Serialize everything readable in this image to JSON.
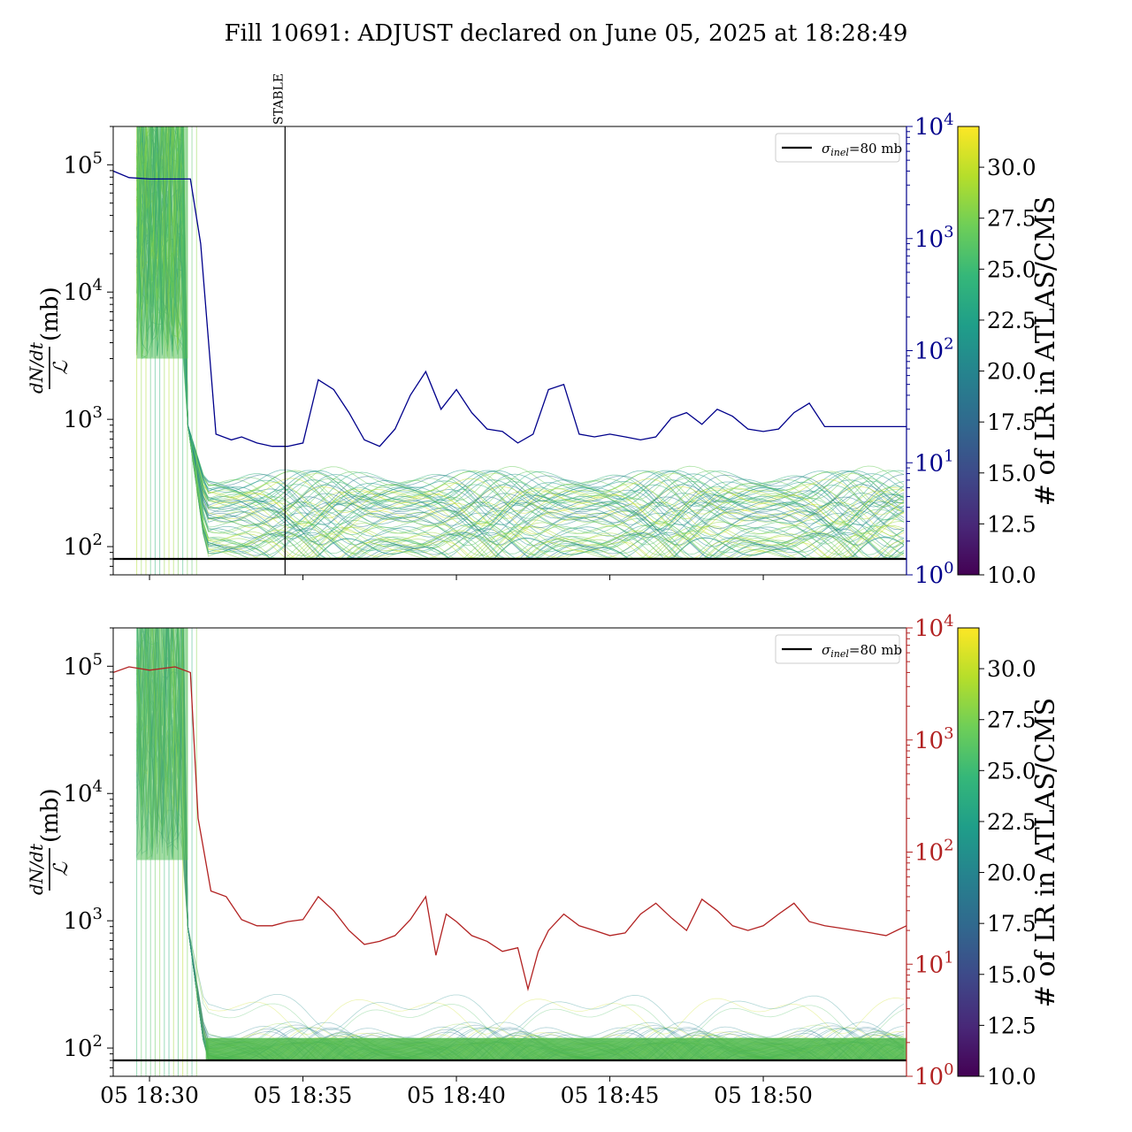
{
  "title": "Fill 10691: ADJUST declared on June 05, 2025 at 18:28:49",
  "colors": {
    "blue_trace": "#00008b",
    "red_trace": "#b22222",
    "threshold": "#000000",
    "viridis": [
      "#440154",
      "#482878",
      "#3e4989",
      "#31688e",
      "#26828e",
      "#1f9e89",
      "#35b779",
      "#6ece58",
      "#b5de2b",
      "#fde725"
    ]
  },
  "chart_data": [
    {
      "type": "line",
      "panel": "top",
      "ylabel_num": "dN/dt",
      "ylabel_den": "ℒ",
      "ylabel_unit": "(mb)",
      "y_scale": "log",
      "ylim": [
        60,
        200000
      ],
      "y_ticks": [
        {
          "base": "10",
          "exp": "2",
          "value": 100
        },
        {
          "base": "10",
          "exp": "3",
          "value": 1000
        },
        {
          "base": "10",
          "exp": "4",
          "value": 10000
        },
        {
          "base": "10",
          "exp": "5",
          "value": 100000
        }
      ],
      "y2_scale": "log",
      "y2lim": [
        1,
        10000
      ],
      "y2_ticks": [
        {
          "base": "10",
          "exp": "0",
          "value": 1
        },
        {
          "base": "10",
          "exp": "1",
          "value": 10
        },
        {
          "base": "10",
          "exp": "2",
          "value": 100
        },
        {
          "base": "10",
          "exp": "3",
          "value": 1000
        },
        {
          "base": "10",
          "exp": "4",
          "value": 10000
        }
      ],
      "y2_color": "#00008b",
      "x_unit": "minutes",
      "xlim": [
        "18:28:49",
        "18:54:40"
      ],
      "x_ticks_show_labels": false,
      "vline": {
        "time": "18:34:25",
        "label": "STABLE"
      },
      "legend": {
        "label": "σinel=80 mb",
        "sigma": "σ",
        "sub": "inel",
        "rest": "=80 mb",
        "position": "top-right"
      },
      "threshold_mb": 80,
      "right_axis_trace": {
        "times": [
          "18:28:49",
          "18:29:20",
          "18:30:00",
          "18:30:50",
          "18:31:20",
          "18:31:40",
          "18:32:10",
          "18:32:40",
          "18:33:00",
          "18:33:30",
          "18:34:00",
          "18:34:30",
          "18:35:00",
          "18:35:30",
          "18:36:00",
          "18:36:30",
          "18:37:00",
          "18:37:30",
          "18:38:00",
          "18:38:30",
          "18:39:00",
          "18:39:30",
          "18:40:00",
          "18:40:30",
          "18:41:00",
          "18:41:30",
          "18:42:00",
          "18:42:30",
          "18:43:00",
          "18:43:30",
          "18:44:00",
          "18:44:30",
          "18:45:00",
          "18:45:30",
          "18:46:00",
          "18:46:30",
          "18:47:00",
          "18:47:30",
          "18:48:00",
          "18:48:30",
          "18:49:00",
          "18:49:30",
          "18:50:00",
          "18:50:30",
          "18:51:00",
          "18:51:30",
          "18:52:00",
          "18:52:30",
          "18:53:00",
          "18:53:30",
          "18:54:00",
          "18:54:40"
        ],
        "values": [
          4000,
          3500,
          3400,
          3400,
          3400,
          900,
          18,
          16,
          17,
          15,
          14,
          14,
          15,
          55,
          45,
          28,
          16,
          14,
          20,
          40,
          65,
          30,
          45,
          28,
          20,
          19,
          15,
          18,
          45,
          50,
          18,
          17,
          18,
          17,
          16,
          17,
          25,
          28,
          22,
          30,
          26,
          20,
          19,
          20,
          28,
          34,
          21,
          21,
          21,
          21,
          21,
          21
        ]
      },
      "colorbar": {
        "label": "# of LR in ATLAS/CMS",
        "range": [
          10,
          32
        ],
        "ticks": [
          "10.0",
          "12.5",
          "15.0",
          "17.5",
          "20.0",
          "22.5",
          "25.0",
          "27.5",
          "30.0"
        ]
      }
    },
    {
      "type": "line",
      "panel": "bottom",
      "ylabel_num": "dN/dt",
      "ylabel_den": "ℒ",
      "ylabel_unit": "(mb)",
      "y_scale": "log",
      "ylim": [
        60,
        200000
      ],
      "y_ticks": [
        {
          "base": "10",
          "exp": "2",
          "value": 100
        },
        {
          "base": "10",
          "exp": "3",
          "value": 1000
        },
        {
          "base": "10",
          "exp": "4",
          "value": 10000
        },
        {
          "base": "10",
          "exp": "5",
          "value": 100000
        }
      ],
      "y2_scale": "log",
      "y2lim": [
        1,
        10000
      ],
      "y2_ticks": [
        {
          "base": "10",
          "exp": "0",
          "value": 1
        },
        {
          "base": "10",
          "exp": "1",
          "value": 10
        },
        {
          "base": "10",
          "exp": "2",
          "value": 100
        },
        {
          "base": "10",
          "exp": "3",
          "value": 1000
        },
        {
          "base": "10",
          "exp": "4",
          "value": 10000
        }
      ],
      "y2_color": "#b22222",
      "x_unit": "minutes",
      "xlim": [
        "18:28:49",
        "18:54:40"
      ],
      "x_ticks": [
        {
          "label": "05 18:30",
          "time": "18:30:00"
        },
        {
          "label": "05 18:35",
          "time": "18:35:00"
        },
        {
          "label": "05 18:40",
          "time": "18:40:00"
        },
        {
          "label": "05 18:45",
          "time": "18:45:00"
        },
        {
          "label": "05 18:50",
          "time": "18:50:00"
        }
      ],
      "legend": {
        "label": "σinel=80 mb",
        "sigma": "σ",
        "sub": "inel",
        "rest": "=80 mb",
        "position": "top-right"
      },
      "threshold_mb": 80,
      "right_axis_trace": {
        "times": [
          "18:28:49",
          "18:29:20",
          "18:30:00",
          "18:30:50",
          "18:31:20",
          "18:31:35",
          "18:32:00",
          "18:32:30",
          "18:33:00",
          "18:33:30",
          "18:34:00",
          "18:34:30",
          "18:35:00",
          "18:35:30",
          "18:36:00",
          "18:36:30",
          "18:37:00",
          "18:37:30",
          "18:38:00",
          "18:38:30",
          "18:39:00",
          "18:39:20",
          "18:39:40",
          "18:40:00",
          "18:40:30",
          "18:41:00",
          "18:41:30",
          "18:42:00",
          "18:42:20",
          "18:42:40",
          "18:43:00",
          "18:43:30",
          "18:44:00",
          "18:44:30",
          "18:45:00",
          "18:45:30",
          "18:46:00",
          "18:46:30",
          "18:47:00",
          "18:47:30",
          "18:48:00",
          "18:48:30",
          "18:49:00",
          "18:49:30",
          "18:50:00",
          "18:50:30",
          "18:51:00",
          "18:51:30",
          "18:52:00",
          "18:52:30",
          "18:53:00",
          "18:53:30",
          "18:54:00",
          "18:54:40"
        ],
        "values": [
          4000,
          4500,
          4200,
          4500,
          4000,
          200,
          45,
          40,
          25,
          22,
          22,
          24,
          25,
          40,
          30,
          20,
          15,
          16,
          18,
          25,
          40,
          12,
          28,
          24,
          18,
          16,
          13,
          14,
          6,
          13,
          20,
          28,
          22,
          20,
          18,
          19,
          28,
          35,
          26,
          20,
          38,
          30,
          22,
          20,
          22,
          28,
          35,
          24,
          22,
          21,
          20,
          19,
          18,
          22
        ]
      },
      "colorbar": {
        "label": "# of LR in ATLAS/CMS",
        "range": [
          10,
          32
        ],
        "ticks": [
          "10.0",
          "12.5",
          "15.0",
          "17.5",
          "20.0",
          "22.5",
          "25.0",
          "27.5",
          "30.0"
        ]
      }
    }
  ]
}
